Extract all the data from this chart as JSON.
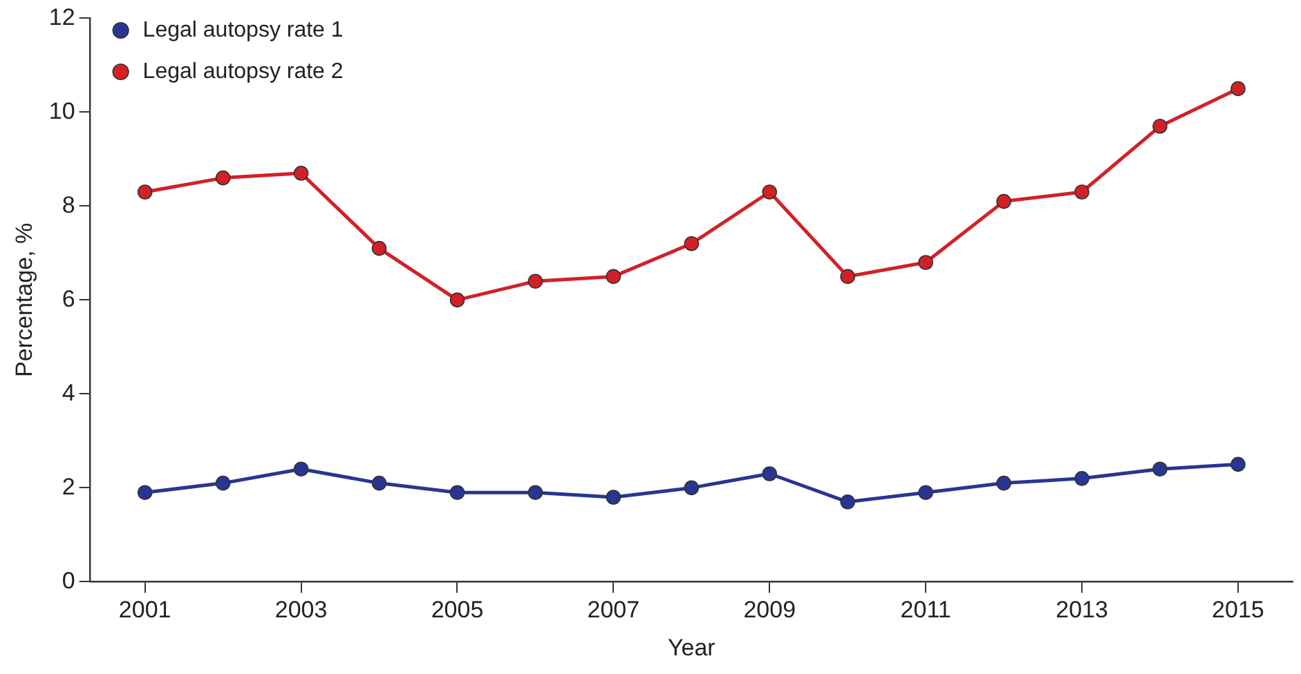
{
  "chart_data": {
    "type": "line",
    "xlabel": "Year",
    "ylabel": "Percentage, %",
    "x": [
      2001,
      2002,
      2003,
      2004,
      2005,
      2006,
      2007,
      2008,
      2009,
      2010,
      2011,
      2012,
      2013,
      2014,
      2015
    ],
    "series": [
      {
        "name": "Legal autopsy rate 1",
        "color": "#283593",
        "values": [
          1.9,
          2.1,
          2.4,
          2.1,
          1.9,
          1.9,
          1.8,
          2.0,
          2.3,
          1.7,
          1.9,
          2.1,
          2.2,
          2.4,
          2.5
        ]
      },
      {
        "name": "Legal autopsy rate 2",
        "color": "#d32027",
        "values": [
          8.3,
          8.6,
          8.7,
          7.1,
          6.0,
          6.4,
          6.5,
          7.2,
          8.3,
          6.5,
          6.8,
          8.1,
          8.3,
          9.7,
          10.5
        ]
      }
    ],
    "xlim": [
      2000.3,
      2015.7
    ],
    "xticks": [
      2001,
      2003,
      2005,
      2007,
      2009,
      2011,
      2013,
      2015
    ],
    "ylim": [
      0,
      12
    ],
    "yticks": [
      0,
      2,
      4,
      6,
      8,
      10,
      12
    ],
    "grid": false,
    "legend": "top left",
    "marker": "circle",
    "line_style": "solid"
  }
}
